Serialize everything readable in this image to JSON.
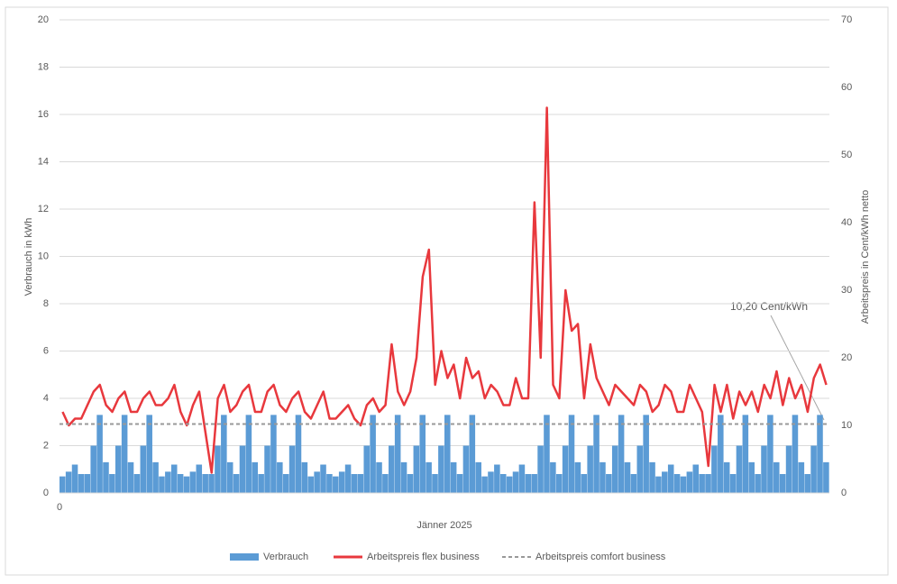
{
  "chart_data": {
    "type": "bar-line",
    "xlabel": "Jänner 2025",
    "ylabel": "Verbrauch in kWh",
    "y2label": "Arbeitspreis in Cent/kWh netto",
    "xlim": [
      0,
      744
    ],
    "xticks": [
      0
    ],
    "ylim": [
      0,
      20
    ],
    "yticks": [
      0,
      2,
      4,
      6,
      8,
      10,
      12,
      14,
      16,
      18,
      20
    ],
    "y2lim": [
      0,
      70
    ],
    "y2ticks": [
      0,
      10,
      20,
      30,
      40,
      50,
      60,
      70
    ],
    "grid": true,
    "legend": "bottom",
    "x": [
      0,
      6,
      12,
      18,
      24,
      30,
      36,
      42,
      48,
      54,
      60,
      66,
      72,
      78,
      84,
      90,
      96,
      102,
      108,
      114,
      120,
      126,
      132,
      138,
      144,
      150,
      156,
      162,
      168,
      174,
      180,
      186,
      192,
      198,
      204,
      210,
      216,
      222,
      228,
      234,
      240,
      246,
      252,
      258,
      264,
      270,
      276,
      282,
      288,
      294,
      300,
      306,
      312,
      318,
      324,
      330,
      336,
      342,
      348,
      354,
      360,
      366,
      372,
      378,
      384,
      390,
      396,
      402,
      408,
      414,
      420,
      426,
      432,
      438,
      444,
      450,
      456,
      462,
      468,
      474,
      480,
      486,
      492,
      498,
      504,
      510,
      516,
      522,
      528,
      534,
      540,
      546,
      552,
      558,
      564,
      570,
      576,
      582,
      588,
      594,
      600,
      606,
      612,
      618,
      624,
      630,
      636,
      642,
      648,
      654,
      660,
      666,
      672,
      678,
      684,
      690,
      696,
      702,
      708,
      714,
      720,
      726,
      732,
      738
    ],
    "series": [
      {
        "name": "Verbrauch",
        "kind": "bar",
        "color": "#5b9bd5",
        "values": [
          0.7,
          0.9,
          1.2,
          0.8,
          0.8,
          2.0,
          3.3,
          1.3,
          0.8,
          2.0,
          3.3,
          1.3,
          0.8,
          2.0,
          3.3,
          1.3,
          0.7,
          0.9,
          1.2,
          0.8,
          0.7,
          0.9,
          1.2,
          0.8,
          0.8,
          2.0,
          3.3,
          1.3,
          0.8,
          2.0,
          3.3,
          1.3,
          0.8,
          2.0,
          3.3,
          1.3,
          0.8,
          2.0,
          3.3,
          1.3,
          0.7,
          0.9,
          1.2,
          0.8,
          0.7,
          0.9,
          1.2,
          0.8,
          0.8,
          2.0,
          3.3,
          1.3,
          0.8,
          2.0,
          3.3,
          1.3,
          0.8,
          2.0,
          3.3,
          1.3,
          0.8,
          2.0,
          3.3,
          1.3,
          0.8,
          2.0,
          3.3,
          1.3,
          0.7,
          0.9,
          1.2,
          0.8,
          0.7,
          0.9,
          1.2,
          0.8,
          0.8,
          2.0,
          3.3,
          1.3,
          0.8,
          2.0,
          3.3,
          1.3,
          0.8,
          2.0,
          3.3,
          1.3,
          0.8,
          2.0,
          3.3,
          1.3,
          0.8,
          2.0,
          3.3,
          1.3,
          0.7,
          0.9,
          1.2,
          0.8,
          0.7,
          0.9,
          1.2,
          0.8,
          0.8,
          2.0,
          3.3,
          1.3,
          0.8,
          2.0,
          3.3,
          1.3,
          0.8,
          2.0,
          3.3,
          1.3,
          0.8,
          2.0,
          3.3,
          1.3,
          0.8,
          2.0,
          3.3,
          1.3
        ]
      },
      {
        "name": "Arbeitspreis flex business",
        "kind": "line",
        "axis": "y2",
        "color": "#e8383d",
        "values": [
          12,
          10,
          11,
          11,
          13,
          15,
          16,
          13,
          12,
          14,
          15,
          12,
          12,
          14,
          15,
          13,
          13,
          14,
          16,
          12,
          10,
          13,
          15,
          9,
          3,
          14,
          16,
          12,
          13,
          15,
          16,
          12,
          12,
          15,
          16,
          13,
          12,
          14,
          15,
          12,
          11,
          13,
          15,
          11,
          11,
          12,
          13,
          11,
          10,
          13,
          14,
          12,
          13,
          22,
          15,
          13,
          15,
          20,
          32,
          36,
          16,
          21,
          17,
          19,
          14,
          20,
          17,
          18,
          14,
          16,
          15,
          13,
          13,
          17,
          14,
          14,
          43,
          20,
          57,
          16,
          14,
          30,
          24,
          25,
          14,
          22,
          17,
          15,
          13,
          16,
          15,
          14,
          13,
          16,
          15,
          12,
          13,
          16,
          15,
          12,
          12,
          16,
          14,
          12,
          4,
          16,
          12,
          16,
          11,
          15,
          13,
          15,
          12,
          16,
          14,
          18,
          13,
          17,
          14,
          16,
          12,
          17,
          19,
          16
        ]
      },
      {
        "name": "Arbeitspreis comfort business",
        "kind": "hline",
        "axis": "y2",
        "color": "#999999",
        "value": 10.2
      }
    ],
    "annotation": "10,20 Cent/kWh"
  }
}
